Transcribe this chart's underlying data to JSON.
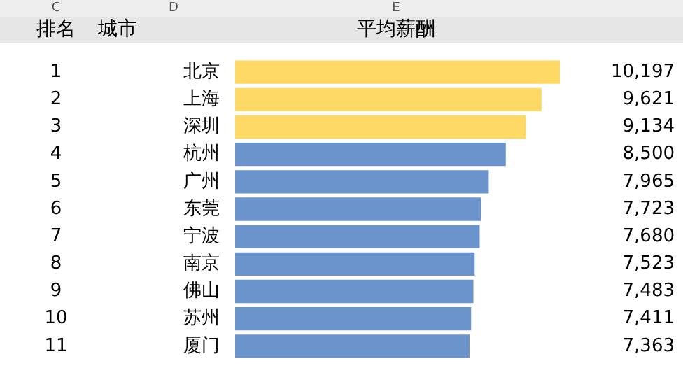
{
  "chart_data": {
    "type": "bar",
    "orientation": "horizontal",
    "xlabel": "平均薪酬",
    "ylabel": "城市",
    "annotations": [
      "C",
      "D",
      "E",
      "排名",
      "1",
      "2",
      "3",
      "4",
      "5",
      "6",
      "7",
      "8",
      "9",
      "10",
      "11"
    ],
    "categories": [
      "北京",
      "上海",
      "深圳",
      "杭州",
      "广州",
      "东莞",
      "宁波",
      "南京",
      "佛山",
      "苏州",
      "厦门"
    ],
    "values": [
      10197,
      9621,
      9134,
      8500,
      7965,
      7723,
      7680,
      7523,
      7483,
      7411,
      7363
    ],
    "value_labels": [
      "10,197",
      "9,621",
      "9,134",
      "8,500",
      "7,965",
      "7,723",
      "7,680",
      "7,523",
      "7,483",
      "7,411",
      "7,363"
    ],
    "colors": [
      "#ffd966",
      "#ffd966",
      "#ffd966",
      "#6b93cc",
      "#6b93cc",
      "#6b93cc",
      "#6b93cc",
      "#6b93cc",
      "#6b93cc",
      "#6b93cc",
      "#6b93cc"
    ]
  }
}
